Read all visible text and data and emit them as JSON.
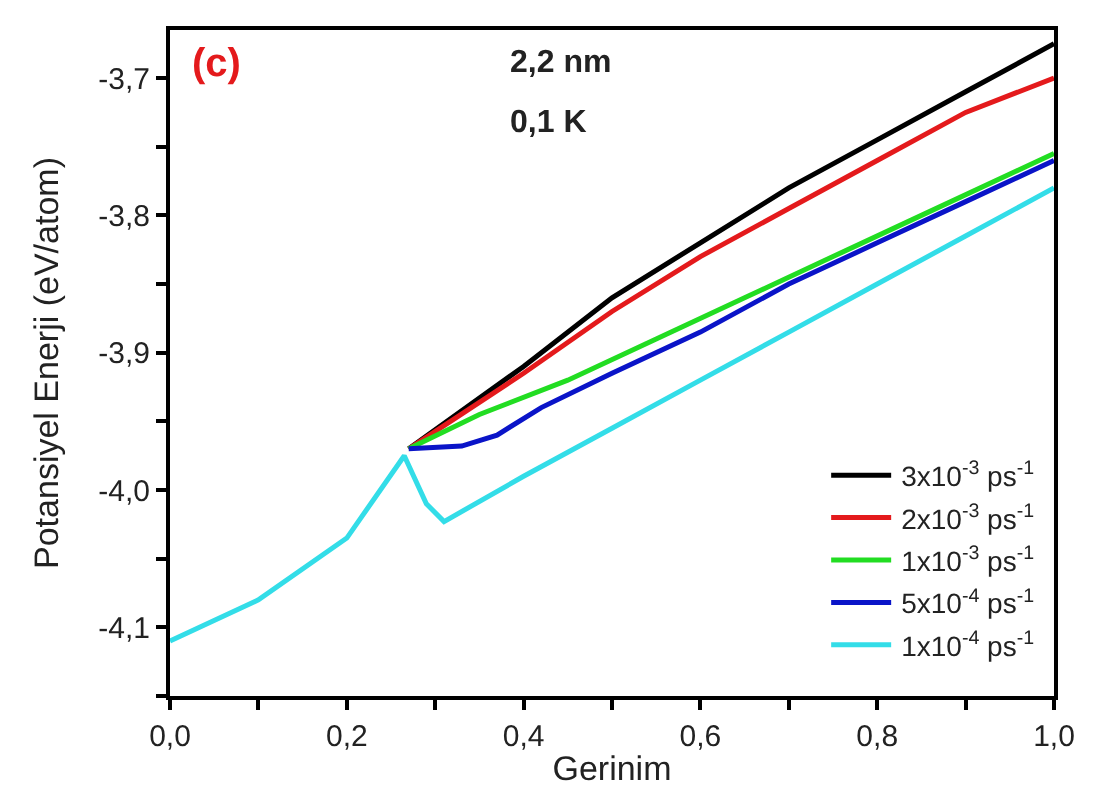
{
  "chart_data": {
    "type": "line",
    "xlabel": "Gerinim",
    "ylabel": "Potansiyel Enerji (eV/atom)",
    "annotations": [
      "(c)",
      "2,2 nm",
      "0,1 K"
    ],
    "xlim": [
      0,
      1.0
    ],
    "ylim": [
      -4.15,
      -3.665
    ],
    "xticks": [
      {
        "value": 0,
        "label": "0,0"
      },
      {
        "value": 0.1,
        "label": null
      },
      {
        "value": 0.2,
        "label": "0,2"
      },
      {
        "value": 0.3,
        "label": null
      },
      {
        "value": 0.4,
        "label": "0,4"
      },
      {
        "value": 0.5,
        "label": null
      },
      {
        "value": 0.6,
        "label": "0,6"
      },
      {
        "value": 0.7,
        "label": null
      },
      {
        "value": 0.8,
        "label": "0,8"
      },
      {
        "value": 0.9,
        "label": null
      },
      {
        "value": 1.0,
        "label": "1,0"
      }
    ],
    "yticks": [
      {
        "value": -4.15,
        "label": null
      },
      {
        "value": -4.1,
        "label": "-4,1"
      },
      {
        "value": -4.05,
        "label": null
      },
      {
        "value": -4.0,
        "label": "-4,0"
      },
      {
        "value": -3.95,
        "label": null
      },
      {
        "value": -3.9,
        "label": "-3,9"
      },
      {
        "value": -3.85,
        "label": null
      },
      {
        "value": -3.8,
        "label": "-3,8"
      },
      {
        "value": -3.75,
        "label": null
      },
      {
        "value": -3.7,
        "label": "-3,7"
      }
    ],
    "legend": "bottom right",
    "marker": "none",
    "line_style": "solid",
    "series": [
      {
        "name": "3x10$^{-3}$ ps$^{-1}$",
        "color": "#000000",
        "x": [
          0.27,
          0.4,
          0.5,
          0.6,
          0.7,
          0.8,
          0.9,
          1.0
        ],
        "values": [
          -3.97,
          -3.91,
          -3.86,
          -3.82,
          -3.78,
          -3.745,
          -3.71,
          -3.675
        ]
      },
      {
        "name": "2x10$^{-3}$ ps$^{-1}$",
        "color": "#e41a1c",
        "x": [
          0.27,
          0.4,
          0.5,
          0.6,
          0.7,
          0.8,
          0.9,
          1.0
        ],
        "values": [
          -3.97,
          -3.915,
          -3.87,
          -3.83,
          -3.795,
          -3.76,
          -3.725,
          -3.7
        ]
      },
      {
        "name": "1x10$^{-3}$ ps$^{-1}$",
        "color": "#22dd22",
        "x": [
          0.27,
          0.35,
          0.45,
          0.55,
          0.65,
          0.75,
          0.85,
          1.0
        ],
        "values": [
          -3.97,
          -3.945,
          -3.92,
          -3.89,
          -3.86,
          -3.83,
          -3.8,
          -3.755
        ]
      },
      {
        "name": "5x10$^{-4}$ ps$^{-1}$",
        "color": "#0a14c8",
        "x": [
          0.27,
          0.33,
          0.37,
          0.42,
          0.5,
          0.6,
          0.7,
          0.8,
          0.9,
          1.0
        ],
        "values": [
          -3.97,
          -3.968,
          -3.96,
          -3.94,
          -3.915,
          -3.885,
          -3.85,
          -3.82,
          -3.79,
          -3.76
        ]
      },
      {
        "name": "1x10$^{-4}$ ps$^{-1}$",
        "color": "#33dde8",
        "x": [
          0,
          0.1,
          0.2,
          0.265,
          0.29,
          0.31,
          0.4,
          0.5,
          0.6,
          0.7,
          0.8,
          0.9,
          1.0
        ],
        "values": [
          -4.11,
          -4.08,
          -4.035,
          -3.975,
          -4.01,
          -4.023,
          -3.99,
          -3.955,
          -3.92,
          -3.885,
          -3.85,
          -3.815,
          -3.78
        ]
      }
    ]
  }
}
